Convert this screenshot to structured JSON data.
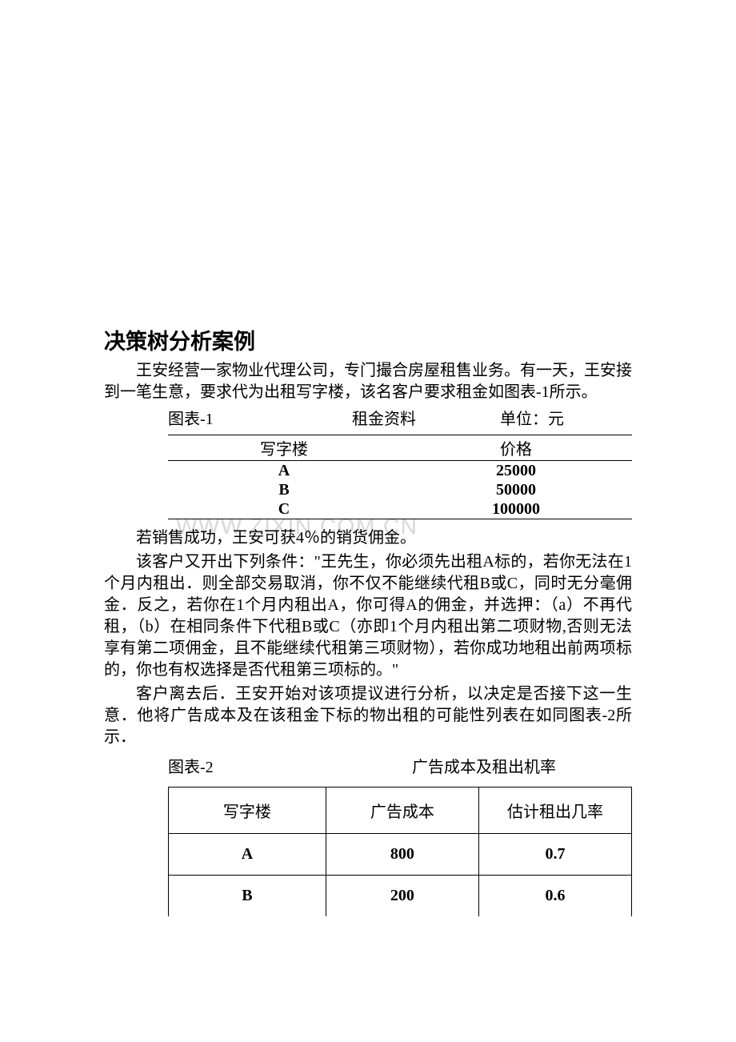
{
  "title": "决策树分析案例",
  "para1": "王安经营一家物业代理公司，专门撮合房屋租售业务。有一天，王安接到一笔生意，要求代为出租写字楼，该名客户要求租金如图表-1所示。",
  "table1_caption": {
    "label": "图表-1",
    "title": "租金资料",
    "unit": "单位：元"
  },
  "table1": {
    "headers": [
      "写字楼",
      "价格"
    ],
    "rows": [
      [
        "A",
        "25000"
      ],
      [
        "B",
        "50000"
      ],
      [
        "C",
        "100000"
      ]
    ]
  },
  "watermark": "WWW.ZIXIN.COM.CN",
  "para2": "若销售成功，王安可获4％的销货佣金。",
  "para3_part1": "该客户又开出下列条件：\"王先生，你必须先出租A标的，若你无法在1个月内租出．则全部交易取消，你不仅不能继续代租B或C，同时无分毫佣金．反之，若你在1个月内租出A，你可得A的佣金，并选押：（a）不再代租，（b）在相同条件下代租B或C（亦即1个月内租出第二项财物,否则无法享有第二项佣金，且不能继续代租第三项财物），若你成功地租出前两项标的，你也有权选择是否代租第三项标的。\"",
  "para4": "客户离去后．王安开始对该项提议进行分析，以决定是否接下这一生意．他将广告成本及在该租金下标的物出租的可能性列表在如同图表-2所示．",
  "table2_caption": {
    "label": "图表-2",
    "title": "广告成本及租出机率"
  },
  "table2": {
    "headers": [
      "写字楼",
      "广告成本",
      "估计租出几率"
    ],
    "rows": [
      [
        "A",
        "800",
        "0.7"
      ],
      [
        "B",
        "200",
        "0.6"
      ]
    ]
  },
  "typography": {
    "title_fontsize": 27,
    "body_fontsize": 20,
    "font_family_cn": "SimSun",
    "font_family_en": "Times New Roman"
  },
  "colors": {
    "background": "#ffffff",
    "text": "#000000",
    "watermark": "#d8d8d8",
    "border": "#000000"
  }
}
